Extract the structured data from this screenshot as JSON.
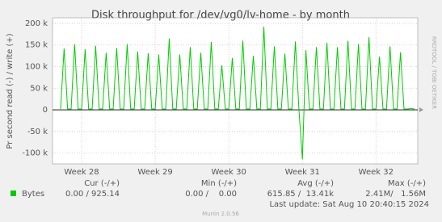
{
  "chart_data": {
    "type": "line",
    "title": "Disk throughput for /dev/vg0/lv-home - by month",
    "y_label": "Pr second read (-) / write (+)",
    "watermark": "RRDTOOL / TOBI OETIKER",
    "categories": [
      null,
      null,
      null,
      null,
      null,
      null,
      "Week 28",
      null,
      null,
      null,
      null,
      null,
      null,
      null,
      null,
      null,
      null,
      null,
      null,
      null,
      null,
      null,
      null,
      null,
      null,
      null,
      null,
      "Week 29",
      null,
      null,
      null,
      null,
      null,
      null,
      null,
      null,
      null,
      null,
      null,
      null,
      null,
      null,
      null,
      null,
      null,
      null,
      null,
      null,
      "Week 30",
      null,
      null,
      null,
      null,
      null,
      null,
      null,
      null,
      null,
      null,
      null,
      null,
      null,
      null,
      null,
      null,
      null,
      null,
      null,
      null,
      "Week 31",
      null,
      null,
      null,
      null,
      null,
      null,
      null,
      null,
      null,
      null,
      null,
      null,
      null,
      null,
      null,
      null,
      null,
      null,
      null,
      null,
      "Week 32",
      null,
      null,
      null,
      null,
      null,
      null,
      null,
      null,
      null,
      null,
      null
    ],
    "series": [
      {
        "name": "Bytes",
        "color": "#00cc00",
        "values": [
          2000,
          142000,
          2000,
          2000,
          152000,
          2000,
          2000,
          140000,
          2000,
          2000,
          148000,
          2000,
          2000,
          132000,
          2000,
          2000,
          143000,
          2000,
          2000,
          152000,
          2000,
          2000,
          135000,
          2000,
          2000,
          131000,
          2000,
          2000,
          128000,
          2000,
          2000,
          165000,
          2000,
          2000,
          128000,
          2000,
          2000,
          145000,
          2000,
          2000,
          132000,
          2000,
          2000,
          157000,
          2000,
          2000,
          103000,
          2000,
          2000,
          120000,
          2000,
          2000,
          160000,
          2000,
          2000,
          125000,
          2000,
          2000,
          192000,
          2000,
          2000,
          147000,
          2000,
          2000,
          130000,
          2000,
          2000,
          158000,
          2000,
          -115000,
          138000,
          2000,
          2000,
          145000,
          2000,
          2000,
          155000,
          2000,
          2000,
          145000,
          2000,
          2000,
          160000,
          2000,
          2000,
          152000,
          2000,
          2000,
          168000,
          2000,
          2000,
          123000,
          2000,
          2000,
          147000,
          2000,
          2000,
          133000,
          2000,
          2000,
          3000,
          2000
        ],
        "stats": [
          "0.00 / 925.14",
          "0.00 /    0.00",
          "615.85 /  13.41k",
          "2.41M/   1.56M"
        ]
      }
    ],
    "stats_headers": [
      "Cur (-/+)",
      "Min (-/+)",
      "Avg (-/+)",
      "Max (-/+)"
    ],
    "ylim": [
      -125000,
      213000
    ],
    "yticks": [
      {
        "value": -100000,
        "label": "-100 k"
      },
      {
        "value": -50000,
        "label": "-50 k"
      },
      0,
      {
        "value": 50000,
        "label": "50 k"
      },
      {
        "value": 100000,
        "label": "100 k"
      },
      {
        "value": 150000,
        "label": "150 k"
      },
      {
        "value": 200000,
        "label": "200 k"
      }
    ],
    "grid": true,
    "last_update": "Last update: Sat Aug 10 20:40:15 2024",
    "footer": "Munin 2.0.56"
  }
}
